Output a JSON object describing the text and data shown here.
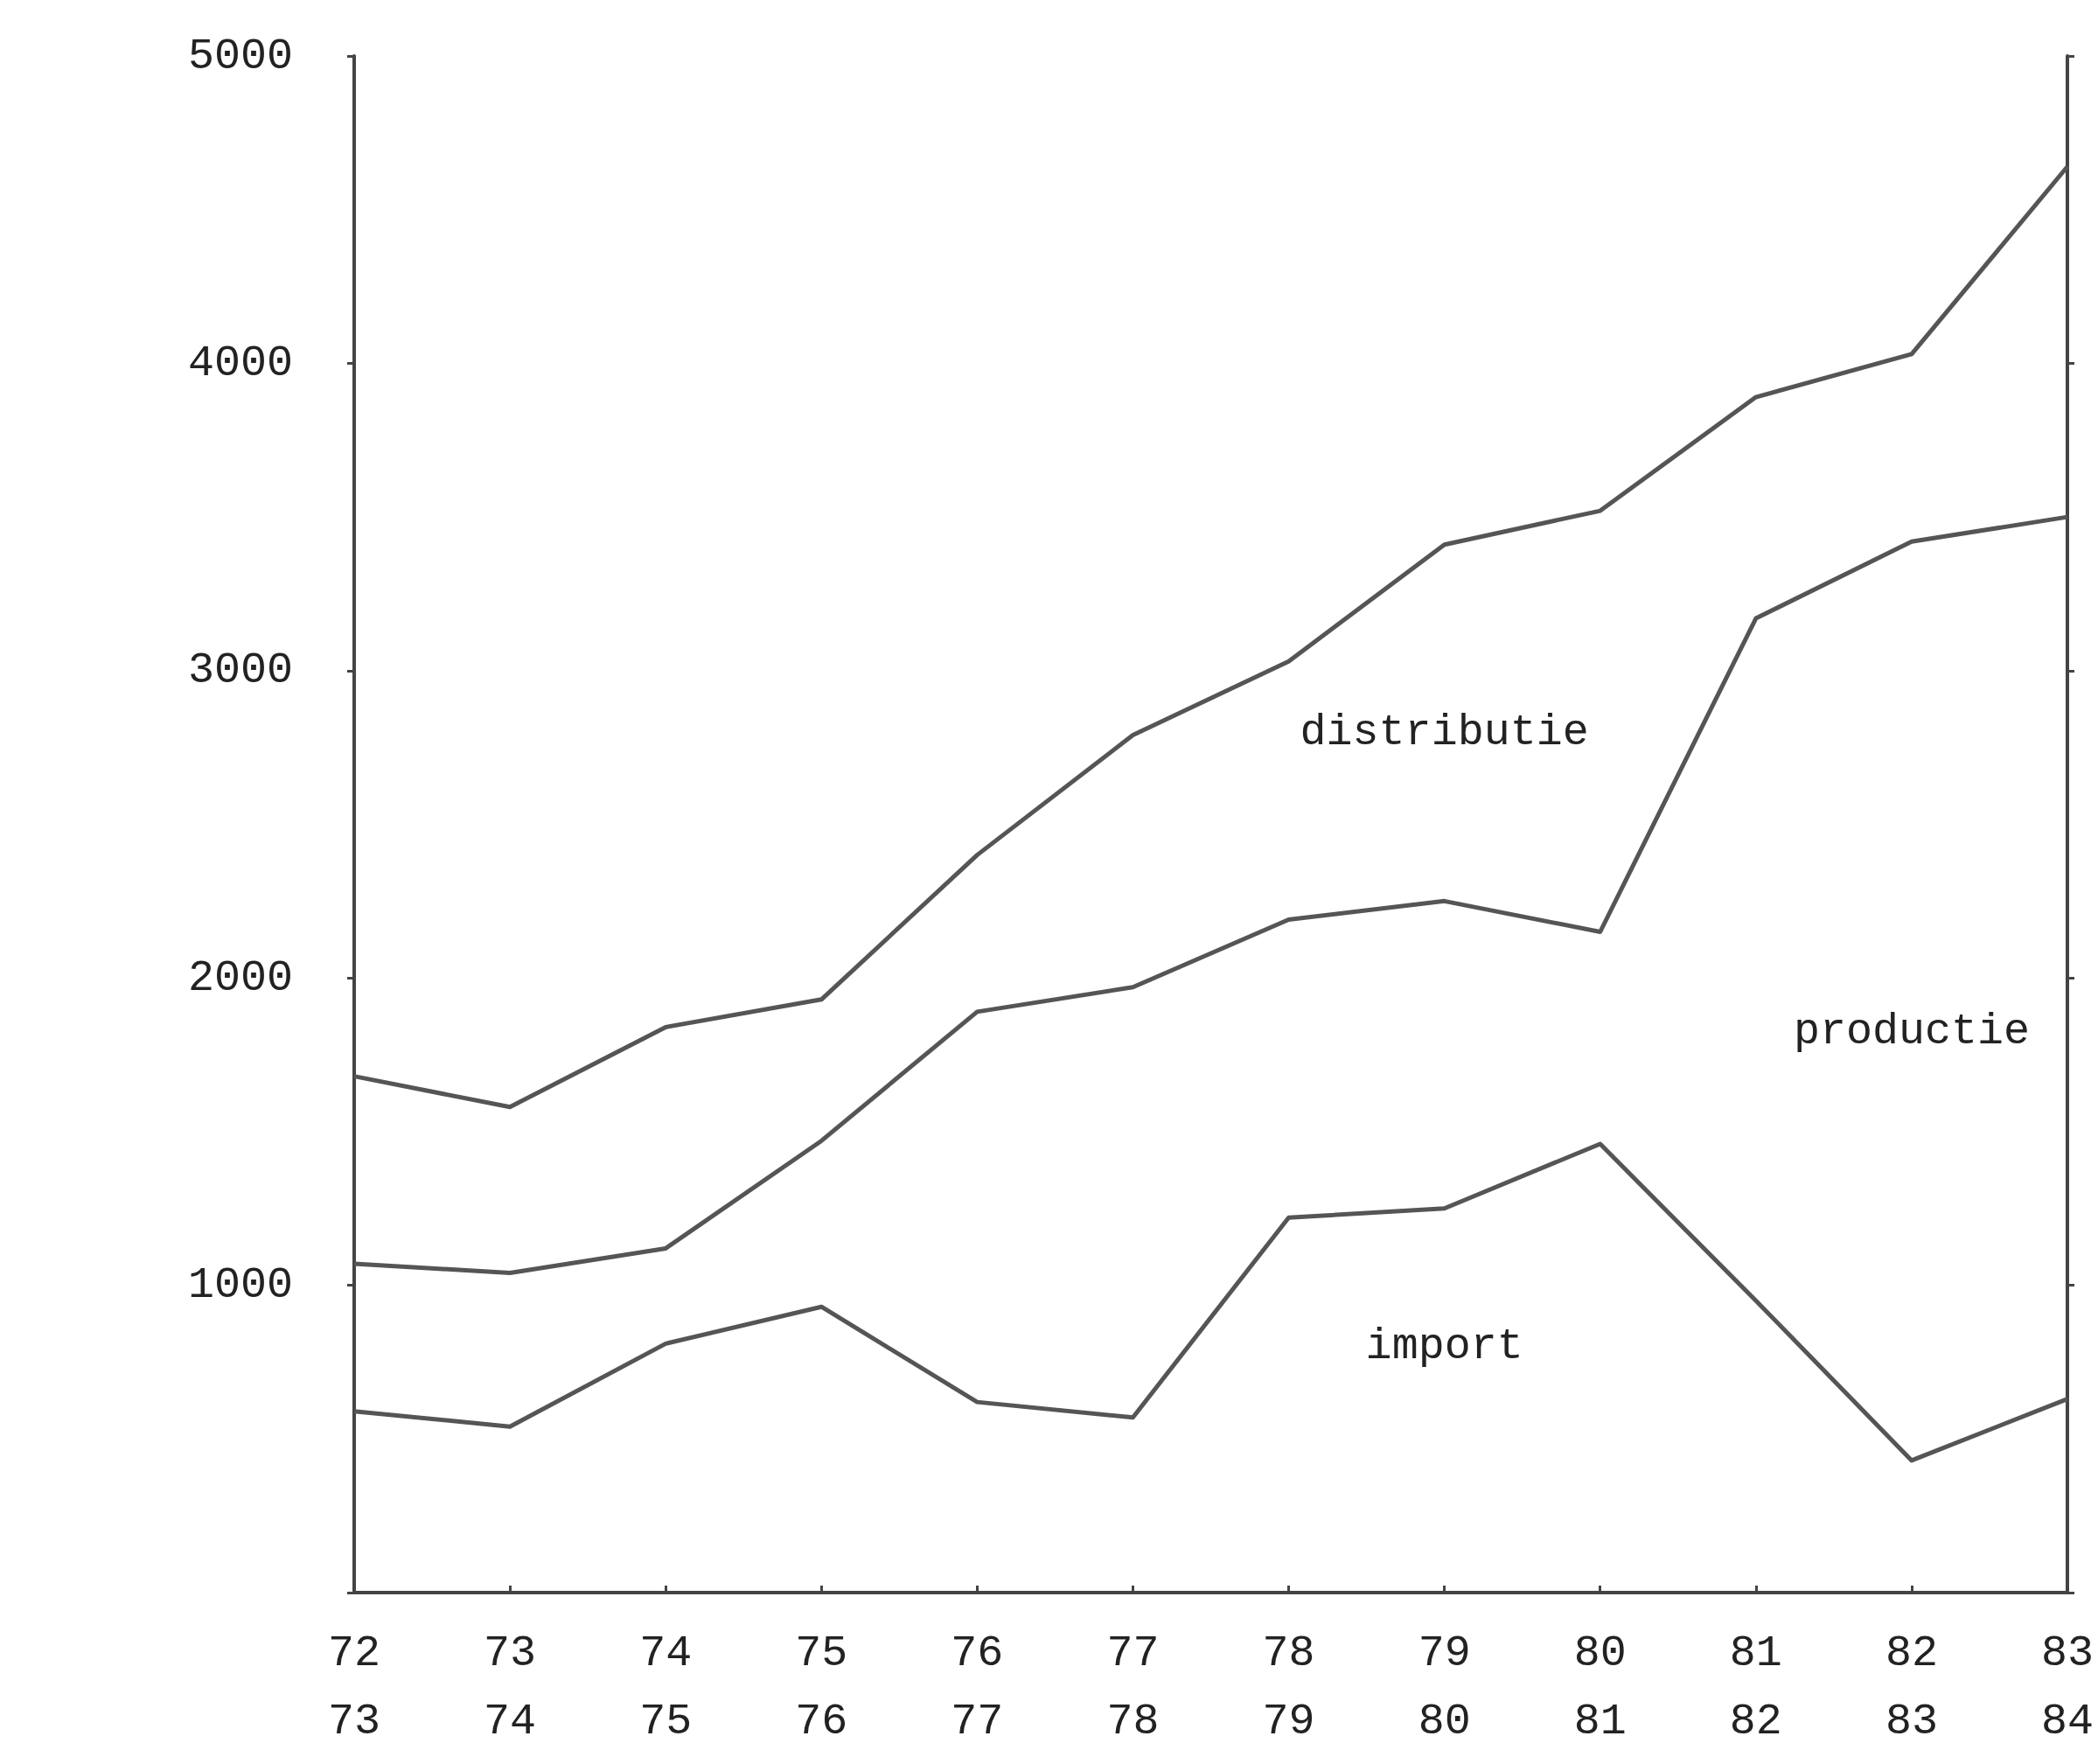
{
  "chart_data": {
    "type": "line",
    "categories": [
      "72\n73",
      "73\n74",
      "74\n75",
      "75\n76",
      "76\n77",
      "77\n78",
      "78\n79",
      "79\n80",
      "80\n81",
      "81\n82",
      "82\n83",
      "83\n84"
    ],
    "series": [
      {
        "name": "distributie",
        "color": "#555555",
        "values": [
          1680,
          1580,
          1840,
          1930,
          2400,
          2790,
          3030,
          3410,
          3520,
          3890,
          4030,
          4640
        ]
      },
      {
        "name": "productie",
        "color": "#555555",
        "values": [
          1070,
          1040,
          1120,
          1470,
          1890,
          1970,
          2190,
          2250,
          2150,
          3170,
          3420,
          3500
        ]
      },
      {
        "name": "import",
        "color": "#555555",
        "values": [
          590,
          540,
          810,
          930,
          620,
          570,
          1220,
          1250,
          1460,
          950,
          430,
          630
        ]
      }
    ],
    "ylim": [
      0,
      5000
    ],
    "yticks": [
      {
        "value": 0,
        "label": null
      },
      1000,
      2000,
      3000,
      4000,
      5000
    ],
    "grid": false,
    "legend": false,
    "marker": "none",
    "line_style": "solid"
  }
}
